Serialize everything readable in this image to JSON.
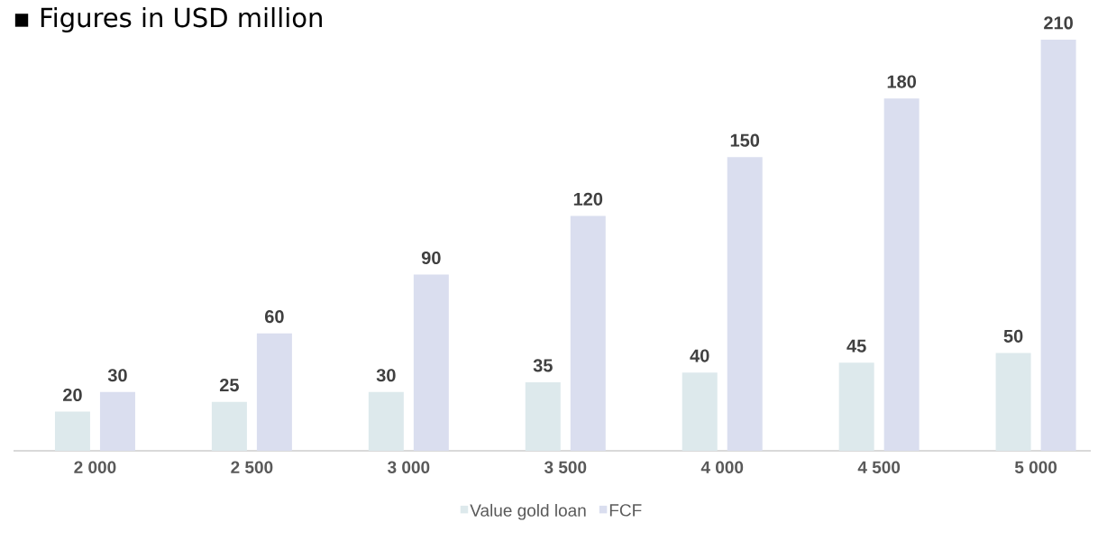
{
  "chart_data": {
    "type": "bar",
    "title": "▪ Figures in USD million",
    "categories": [
      "2 000",
      "2 500",
      "3 000",
      "3 500",
      "4 000",
      "4 500",
      "5 000"
    ],
    "series": [
      {
        "name": "Value gold loan",
        "color": "#dde9ec",
        "values": [
          20,
          25,
          30,
          35,
          40,
          45,
          50
        ]
      },
      {
        "name": "FCF",
        "color": "#dadeef",
        "values": [
          30,
          60,
          90,
          120,
          150,
          180,
          210
        ]
      }
    ],
    "data_labels": true,
    "legend": "bottom"
  }
}
